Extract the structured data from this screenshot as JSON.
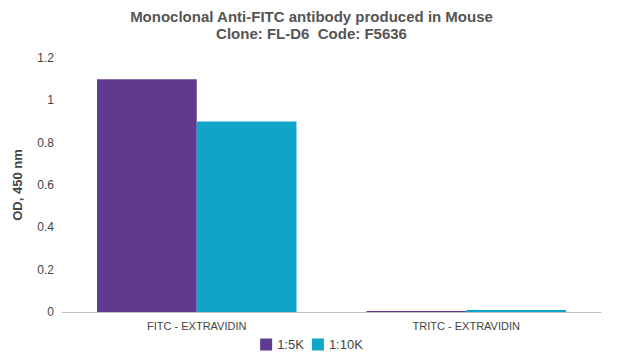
{
  "chart_data": {
    "type": "bar",
    "title": "Monoclonal Anti-FITC antibody produced in Mouse",
    "subtitle": "Clone: FL-D6  Code: F5636",
    "y_label": "OD, 450 nm",
    "categories": [
      "FITC - EXTRAVIDIN",
      "TRITC - EXTRAVIDIN"
    ],
    "series": [
      {
        "name": "1:5K",
        "color": "#5f3a8f",
        "values": [
          1.1,
          0.005
        ]
      },
      {
        "name": "1:10K",
        "color": "#0ea5c8",
        "values": [
          0.9,
          0.01
        ]
      }
    ],
    "ylim": [
      0,
      1.2
    ],
    "yticks": [
      0,
      0.2,
      0.4,
      0.6,
      0.8,
      1,
      1.2
    ],
    "grid": false,
    "legend": "bottom"
  }
}
